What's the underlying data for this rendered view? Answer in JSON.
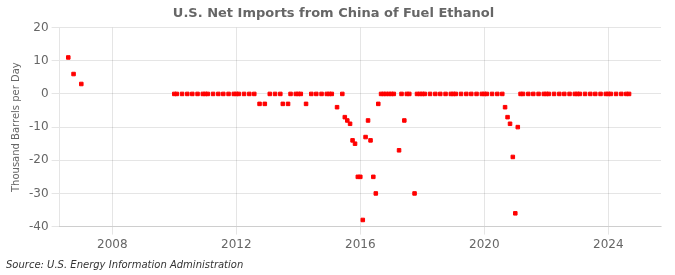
{
  "chart_data": {
    "type": "scatter",
    "title": "U.S. Net Imports from China of Fuel Ethanol",
    "ylabel": "Thousand Barrels per Day",
    "annotation": "Source: U.S. Energy Information Administration",
    "color": "#ff0000",
    "marker": "square",
    "grid": true,
    "xlim": [
      2006.3,
      2025.7
    ],
    "xticks": [
      2008,
      2012,
      2016,
      2020,
      2024
    ],
    "ylim": [
      -40,
      20
    ],
    "yticks": [
      -40,
      -30,
      -20,
      -10,
      0,
      10,
      20
    ],
    "x": [
      2006.58,
      2006.75,
      2007.0,
      2010.0,
      2010.08,
      2010.25,
      2010.42,
      2010.58,
      2010.75,
      2010.92,
      2011.0,
      2011.08,
      2011.25,
      2011.42,
      2011.58,
      2011.75,
      2011.92,
      2012.0,
      2012.08,
      2012.25,
      2012.42,
      2012.58,
      2012.75,
      2012.92,
      2013.08,
      2013.25,
      2013.42,
      2013.5,
      2013.67,
      2013.75,
      2013.92,
      2014.0,
      2014.08,
      2014.25,
      2014.42,
      2014.58,
      2014.75,
      2014.92,
      2015.0,
      2015.08,
      2015.25,
      2015.42,
      2015.5,
      2015.58,
      2015.67,
      2015.75,
      2015.83,
      2015.92,
      2016.0,
      2016.08,
      2016.17,
      2016.25,
      2016.33,
      2016.42,
      2016.5,
      2016.58,
      2016.67,
      2016.75,
      2016.83,
      2016.92,
      2017.0,
      2017.08,
      2017.25,
      2017.33,
      2017.42,
      2017.5,
      2017.58,
      2017.75,
      2017.83,
      2017.92,
      2018.0,
      2018.08,
      2018.25,
      2018.42,
      2018.58,
      2018.75,
      2018.92,
      2019.0,
      2019.08,
      2019.25,
      2019.42,
      2019.58,
      2019.75,
      2019.92,
      2020.0,
      2020.08,
      2020.25,
      2020.42,
      2020.58,
      2020.67,
      2020.75,
      2020.83,
      2020.92,
      2021.0,
      2021.08,
      2021.17,
      2021.25,
      2021.42,
      2021.58,
      2021.75,
      2021.92,
      2022.0,
      2022.08,
      2022.25,
      2022.42,
      2022.58,
      2022.75,
      2022.92,
      2023.0,
      2023.08,
      2023.25,
      2023.42,
      2023.58,
      2023.75,
      2023.92,
      2024.0,
      2024.08,
      2024.25,
      2024.42,
      2024.58,
      2024.67
    ],
    "values": [
      11,
      6,
      3,
      0,
      0,
      0,
      0,
      0,
      0,
      0,
      0,
      0,
      0,
      0,
      0,
      0,
      0,
      0,
      0,
      0,
      0,
      0,
      -3,
      -3,
      0,
      0,
      0,
      -3,
      -3,
      0,
      0,
      0,
      0,
      -3,
      0,
      0,
      0,
      0,
      0,
      0,
      -4,
      0,
      -7,
      -8,
      -9,
      -14,
      -15,
      -25,
      -25,
      -38,
      -13,
      -8,
      -14,
      -25,
      -30,
      -3,
      0,
      0,
      0,
      0,
      0,
      0,
      -17,
      0,
      -8,
      0,
      0,
      -30,
      0,
      0,
      0,
      0,
      0,
      0,
      0,
      0,
      0,
      0,
      0,
      0,
      0,
      0,
      0,
      0,
      0,
      0,
      0,
      0,
      0,
      -4,
      -7,
      -9,
      -19,
      -36,
      -10,
      0,
      0,
      0,
      0,
      0,
      0,
      0,
      0,
      0,
      0,
      0,
      0,
      0,
      0,
      0,
      0,
      0,
      0,
      0,
      0,
      0,
      0,
      0,
      0,
      0,
      0
    ]
  }
}
